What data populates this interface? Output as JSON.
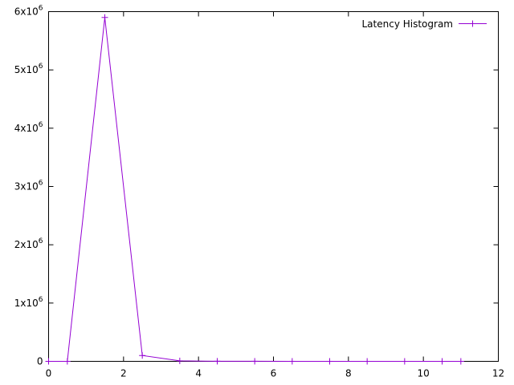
{
  "chart_data": {
    "type": "line",
    "title": "",
    "xlabel": "",
    "ylabel": "",
    "xlim": [
      0,
      12
    ],
    "ylim": [
      0,
      6000000
    ],
    "grid": false,
    "legend_position": "top-right",
    "x_ticks": [
      {
        "value": 0,
        "label": "0"
      },
      {
        "value": 2,
        "label": "2"
      },
      {
        "value": 4,
        "label": "4"
      },
      {
        "value": 6,
        "label": "6"
      },
      {
        "value": 8,
        "label": "8"
      },
      {
        "value": 10,
        "label": "10"
      },
      {
        "value": 12,
        "label": "12"
      }
    ],
    "y_ticks": [
      {
        "value": 0,
        "mantissa": "0",
        "exponent": ""
      },
      {
        "value": 1000000,
        "mantissa": "1x10",
        "exponent": "6"
      },
      {
        "value": 2000000,
        "mantissa": "2x10",
        "exponent": "6"
      },
      {
        "value": 3000000,
        "mantissa": "3x10",
        "exponent": "6"
      },
      {
        "value": 4000000,
        "mantissa": "4x10",
        "exponent": "6"
      },
      {
        "value": 5000000,
        "mantissa": "5x10",
        "exponent": "6"
      },
      {
        "value": 6000000,
        "mantissa": "6x10",
        "exponent": "6"
      }
    ],
    "series": [
      {
        "name": "Latency Histogram",
        "color": "#9400d3",
        "marker": "plus",
        "x": [
          0,
          0.5,
          1.5,
          2.5,
          3.5,
          4.5,
          5.5,
          6.5,
          7.5,
          8.5,
          9.5,
          10.5,
          11
        ],
        "y": [
          0,
          0,
          5900000,
          100000,
          8000,
          2000,
          1000,
          500,
          300,
          200,
          100,
          100,
          50
        ]
      }
    ]
  }
}
